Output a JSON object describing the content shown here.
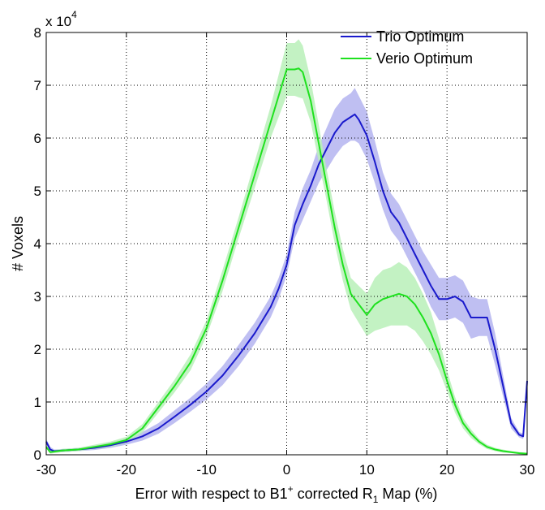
{
  "chart_data": {
    "type": "line",
    "title": "",
    "xlabel": "Error with respect to B1",
    "xlabel_sup": "+",
    "xlabel_mid": " corrected R",
    "xlabel_sub": "1",
    "xlabel_end": " Map (%)",
    "ylabel": "# Voxels",
    "y_exponent_label": "x 10",
    "y_exponent_power": "4",
    "xlim": [
      -30,
      30
    ],
    "ylim": [
      0,
      8
    ],
    "xticks": [
      -30,
      -20,
      -10,
      0,
      10,
      20,
      30
    ],
    "yticks": [
      0,
      1,
      2,
      3,
      4,
      5,
      6,
      7,
      8
    ],
    "grid": true,
    "legend_position": "top-right",
    "series": [
      {
        "name": "Trio Optimum",
        "color": "#1a1acc",
        "band_color": "#b4b4f0",
        "x": [
          -30,
          -29.5,
          -29,
          -28,
          -26,
          -24,
          -22,
          -20,
          -18,
          -16,
          -14,
          -12,
          -10,
          -8,
          -6,
          -4,
          -2,
          -1,
          0,
          1,
          2,
          3,
          4,
          5,
          6,
          7,
          8,
          8.5,
          9,
          10,
          11,
          12,
          13,
          14,
          15,
          16,
          17,
          18,
          19,
          20,
          21,
          22,
          23,
          24,
          25,
          26,
          27,
          28,
          29,
          29.5,
          30
        ],
        "y": [
          0.25,
          0.1,
          0.07,
          0.08,
          0.1,
          0.13,
          0.18,
          0.25,
          0.35,
          0.5,
          0.72,
          0.95,
          1.2,
          1.5,
          1.88,
          2.3,
          2.8,
          3.15,
          3.6,
          4.35,
          4.75,
          5.1,
          5.5,
          5.8,
          6.1,
          6.3,
          6.4,
          6.45,
          6.35,
          6.05,
          5.55,
          5.0,
          4.6,
          4.4,
          4.1,
          3.8,
          3.5,
          3.2,
          2.95,
          2.95,
          3.0,
          2.9,
          2.6,
          2.6,
          2.6,
          2.0,
          1.3,
          0.6,
          0.38,
          0.35,
          1.4
        ],
        "band": [
          0.05,
          0.05,
          0.03,
          0.03,
          0.03,
          0.04,
          0.05,
          0.06,
          0.08,
          0.1,
          0.12,
          0.13,
          0.15,
          0.18,
          0.2,
          0.2,
          0.2,
          0.2,
          0.2,
          0.25,
          0.3,
          0.3,
          0.35,
          0.4,
          0.45,
          0.45,
          0.45,
          0.5,
          0.45,
          0.45,
          0.4,
          0.35,
          0.35,
          0.35,
          0.35,
          0.35,
          0.35,
          0.4,
          0.4,
          0.4,
          0.4,
          0.4,
          0.4,
          0.35,
          0.35,
          0.3,
          0.2,
          0.1,
          0.05,
          0.05,
          0.05
        ]
      },
      {
        "name": "Verio Optimum",
        "color": "#1ee11e",
        "band_color": "#b8f0b8",
        "x": [
          -30,
          -29.5,
          -29,
          -28,
          -26,
          -24,
          -22,
          -20,
          -18,
          -16,
          -14,
          -12,
          -10,
          -8,
          -6,
          -4,
          -2,
          -1,
          0,
          1,
          1.5,
          2,
          3,
          4,
          5,
          6,
          7,
          8,
          9,
          10,
          11,
          12,
          13,
          14,
          15,
          16,
          17,
          18,
          19,
          20,
          21,
          22,
          23,
          24,
          25,
          26,
          27,
          28,
          29,
          30
        ],
        "y": [
          0.15,
          0.05,
          0.06,
          0.08,
          0.1,
          0.15,
          0.2,
          0.28,
          0.5,
          0.9,
          1.3,
          1.75,
          2.4,
          3.3,
          4.3,
          5.3,
          6.3,
          6.8,
          7.3,
          7.3,
          7.32,
          7.25,
          6.7,
          5.9,
          5.1,
          4.3,
          3.6,
          3.05,
          2.85,
          2.65,
          2.85,
          2.95,
          3.0,
          3.05,
          3.0,
          2.85,
          2.6,
          2.3,
          1.9,
          1.4,
          0.95,
          0.6,
          0.4,
          0.25,
          0.15,
          0.1,
          0.07,
          0.05,
          0.03,
          0.02
        ],
        "band": [
          0.03,
          0.03,
          0.03,
          0.03,
          0.03,
          0.04,
          0.05,
          0.06,
          0.08,
          0.1,
          0.12,
          0.15,
          0.15,
          0.2,
          0.2,
          0.25,
          0.3,
          0.4,
          0.5,
          0.5,
          0.55,
          0.5,
          0.4,
          0.35,
          0.3,
          0.3,
          0.3,
          0.3,
          0.35,
          0.4,
          0.5,
          0.55,
          0.55,
          0.6,
          0.55,
          0.5,
          0.45,
          0.4,
          0.3,
          0.2,
          0.15,
          0.1,
          0.08,
          0.05,
          0.04,
          0.03,
          0.03,
          0.02,
          0.02,
          0.02
        ]
      }
    ]
  }
}
